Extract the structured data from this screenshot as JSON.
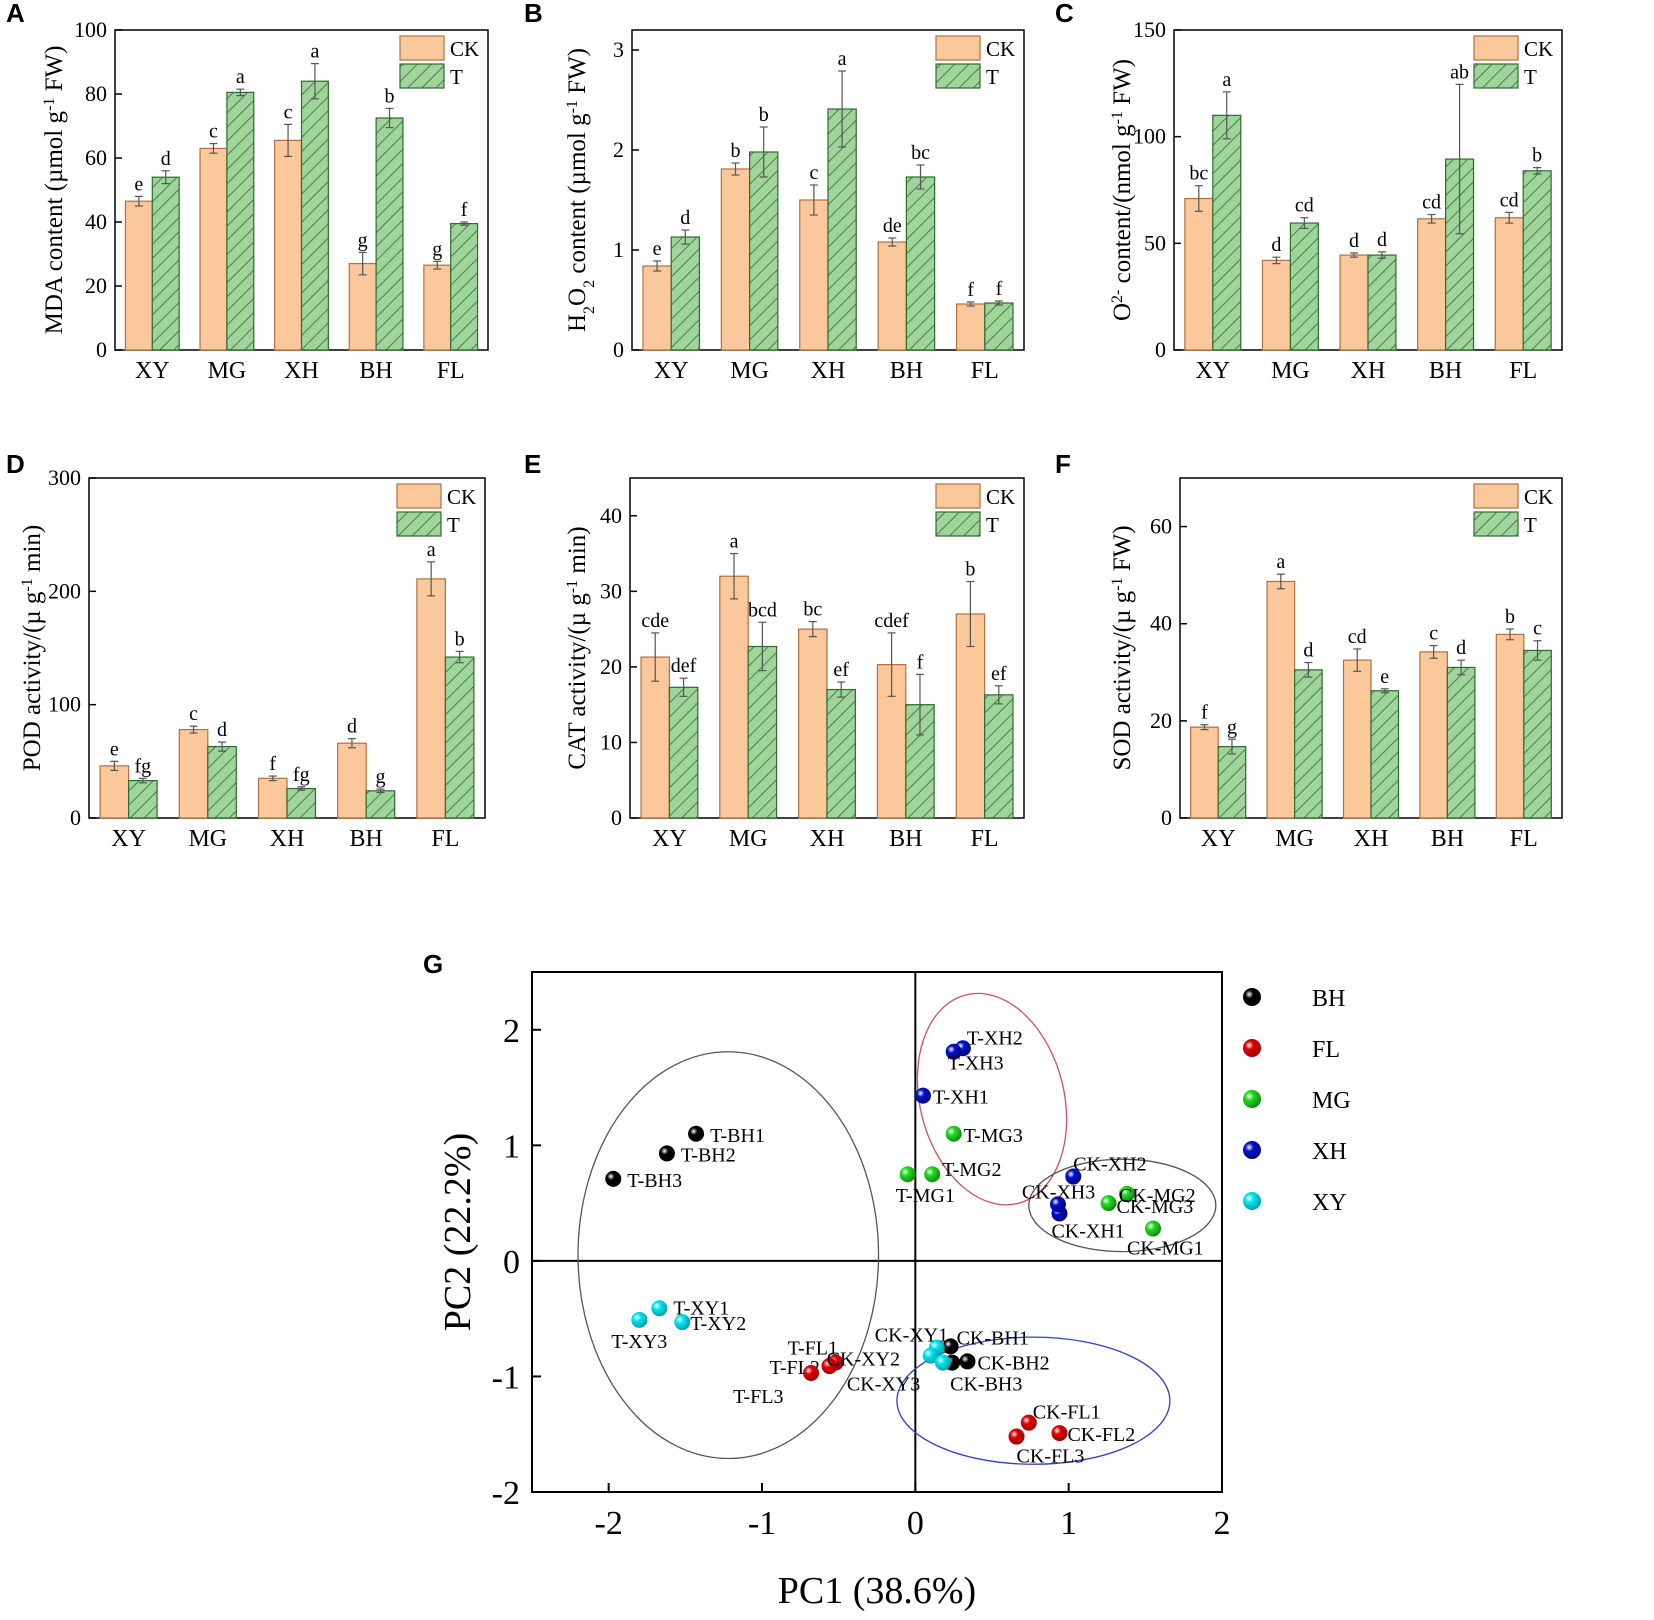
{
  "colors": {
    "ck_fill": "#fbc89c",
    "ck_stroke": "#b07040",
    "t_fill": "#9fd49a",
    "t_stroke": "#2e6b2e",
    "ellipse_black": "#555555",
    "ellipse_red": "#d05060",
    "ellipse_blue": "#3040c0"
  },
  "chart_data": [
    {
      "panel": "A",
      "type": "bar",
      "ylabel": "MDA content (µmol g-1 FW)",
      "ylabel_parts": {
        "main": "MDA content (µmol g",
        "sup": "-1",
        "rest": " FW)"
      },
      "categories": [
        "XY",
        "MG",
        "XH",
        "BH",
        "FL"
      ],
      "ylim": [
        0,
        100
      ],
      "yticks": [
        0,
        20,
        40,
        60,
        80,
        100
      ],
      "legend": [
        "CK",
        "T"
      ],
      "series": [
        {
          "name": "CK",
          "values": [
            46.5,
            63,
            65.5,
            27,
            26.5
          ],
          "errors": [
            1.5,
            1.5,
            5,
            3.5,
            1.2
          ],
          "letters": [
            "e",
            "c",
            "c",
            "g",
            "g"
          ]
        },
        {
          "name": "T",
          "values": [
            54,
            80.5,
            84,
            72.5,
            39.5
          ],
          "errors": [
            2,
            1,
            5.5,
            3,
            0.5
          ],
          "letters": [
            "d",
            "a",
            "a",
            "b",
            "f"
          ]
        }
      ]
    },
    {
      "panel": "B",
      "type": "bar",
      "ylabel": "H2O2 content (µmol g-1 FW)",
      "ylabel_parts": {
        "main": "H",
        "sub1": "2",
        "mid": "O",
        "sub2": "2",
        "main2": " content (µmol g",
        "sup": "-1",
        "rest": " FW)"
      },
      "categories": [
        "XY",
        "MG",
        "XH",
        "BH",
        "FL"
      ],
      "ylim": [
        0,
        3.2
      ],
      "yticks": [
        0,
        1,
        2,
        3
      ],
      "legend": [
        "CK",
        "T"
      ],
      "series": [
        {
          "name": "CK",
          "values": [
            0.84,
            1.81,
            1.5,
            1.08,
            0.46
          ],
          "errors": [
            0.05,
            0.06,
            0.15,
            0.04,
            0.02
          ],
          "letters": [
            "e",
            "b",
            "c",
            "de",
            "f"
          ]
        },
        {
          "name": "T",
          "values": [
            1.13,
            1.98,
            2.41,
            1.73,
            0.47
          ],
          "errors": [
            0.07,
            0.25,
            0.38,
            0.12,
            0.02
          ],
          "letters": [
            "d",
            "b",
            "a",
            "bc",
            "f"
          ]
        }
      ]
    },
    {
      "panel": "C",
      "type": "bar",
      "ylabel": "O2- content/(nmol g-1 FW)",
      "ylabel_parts": {
        "main": "O",
        "sup1": "2-",
        "main2": " content/(nmol g",
        "sup": "-1",
        "rest": " FW)"
      },
      "categories": [
        "XY",
        "MG",
        "XH",
        "BH",
        "FL"
      ],
      "ylim": [
        0,
        150
      ],
      "yticks": [
        0,
        50,
        100,
        150
      ],
      "legend": [
        "CK",
        "T"
      ],
      "series": [
        {
          "name": "CK",
          "values": [
            71,
            42,
            44.5,
            61.5,
            62
          ],
          "errors": [
            6,
            1.5,
            1,
            2,
            2.5
          ],
          "letters": [
            "bc",
            "d",
            "d",
            "cd",
            "cd"
          ]
        },
        {
          "name": "T",
          "values": [
            110,
            59.5,
            44.5,
            89.5,
            84
          ],
          "errors": [
            11,
            2.5,
            1.5,
            35,
            1.5
          ],
          "letters": [
            "a",
            "cd",
            "d",
            "ab",
            "b"
          ]
        }
      ]
    },
    {
      "panel": "D",
      "type": "bar",
      "ylabel": "POD activity/(µ g-1 min)",
      "ylabel_parts": {
        "main": "POD activity/(µ g",
        "sup": "-1",
        "rest": " min)"
      },
      "categories": [
        "XY",
        "MG",
        "XH",
        "BH",
        "FL"
      ],
      "ylim": [
        0,
        300
      ],
      "yticks": [
        0,
        100,
        200,
        300
      ],
      "legend": [
        "CK",
        "T"
      ],
      "series": [
        {
          "name": "CK",
          "values": [
            46,
            78,
            35,
            66,
            211
          ],
          "errors": [
            4,
            3,
            2,
            4,
            15
          ],
          "letters": [
            "e",
            "c",
            "f",
            "d",
            "a"
          ]
        },
        {
          "name": "T",
          "values": [
            33,
            63,
            26,
            24,
            142
          ],
          "errors": [
            2,
            4,
            1.5,
            1.5,
            5
          ],
          "letters": [
            "fg",
            "d",
            "fg",
            "g",
            "b"
          ]
        }
      ]
    },
    {
      "panel": "E",
      "type": "bar",
      "ylabel": "CAT activity/(µ g-1 min)",
      "ylabel_parts": {
        "main": "CAT activity/(µ g",
        "sup": "-1",
        "rest": " min)"
      },
      "categories": [
        "XY",
        "MG",
        "XH",
        "BH",
        "FL"
      ],
      "ylim": [
        0,
        45
      ],
      "yticks": [
        0,
        10,
        20,
        30,
        40
      ],
      "legend": [
        "CK",
        "T"
      ],
      "series": [
        {
          "name": "CK",
          "values": [
            21.3,
            32,
            25,
            20.3,
            27
          ],
          "errors": [
            3.2,
            3,
            1,
            4.2,
            4.3
          ],
          "letters": [
            "cde",
            "a",
            "bc",
            "cdef",
            "b"
          ]
        },
        {
          "name": "T",
          "values": [
            17.3,
            22.7,
            17,
            15,
            16.3
          ],
          "errors": [
            1.2,
            3.2,
            1,
            4,
            1.2
          ],
          "letters": [
            "def",
            "bcd",
            "ef",
            "f",
            "ef"
          ]
        }
      ]
    },
    {
      "panel": "F",
      "type": "bar",
      "ylabel": "SOD activity/(µ g-1 FW)",
      "ylabel_parts": {
        "main": "SOD activity/(µ g",
        "sup": "-1",
        "rest": " FW)"
      },
      "categories": [
        "XY",
        "MG",
        "XH",
        "BH",
        "FL"
      ],
      "ylim": [
        0,
        70
      ],
      "yticks": [
        0,
        20,
        40,
        60
      ],
      "legend": [
        "CK",
        "T"
      ],
      "series": [
        {
          "name": "CK",
          "values": [
            18.7,
            48.7,
            32.5,
            34.2,
            37.8
          ],
          "errors": [
            0.5,
            1.5,
            2.3,
            1.3,
            1.1
          ],
          "letters": [
            "f",
            "a",
            "cd",
            "c",
            "b"
          ]
        },
        {
          "name": "T",
          "values": [
            14.7,
            30.5,
            26.2,
            31,
            34.5
          ],
          "errors": [
            1.5,
            1.5,
            0.4,
            1.5,
            2
          ],
          "letters": [
            "g",
            "d",
            "e",
            "d",
            "c"
          ]
        }
      ]
    },
    {
      "panel": "G",
      "type": "scatter",
      "xlabel": "PC1 (38.6%)",
      "ylabel": "PC2 (22.2%)",
      "xlim": [
        -2.5,
        2
      ],
      "ylim": [
        -2,
        2.5
      ],
      "xticks": [
        -2,
        -1,
        0,
        1,
        2
      ],
      "yticks": [
        -2,
        -1,
        0,
        1,
        2
      ],
      "groups": [
        {
          "name": "BH",
          "color": "#000000"
        },
        {
          "name": "FL",
          "color": "#e00000"
        },
        {
          "name": "MG",
          "color": "#22dd22"
        },
        {
          "name": "XH",
          "color": "#0010d0"
        },
        {
          "name": "XY",
          "color": "#00e8f0"
        }
      ],
      "points": [
        {
          "label": "T-BH1",
          "group": "BH",
          "x": -1.43,
          "y": 1.1
        },
        {
          "label": "T-BH2",
          "group": "BH",
          "x": -1.62,
          "y": 0.93
        },
        {
          "label": "T-BH3",
          "group": "BH",
          "x": -1.97,
          "y": 0.71
        },
        {
          "label": "CK-BH1",
          "group": "BH",
          "x": 0.23,
          "y": -0.74
        },
        {
          "label": "CK-BH2",
          "group": "BH",
          "x": 0.34,
          "y": -0.87
        },
        {
          "label": "CK-BH3",
          "group": "BH",
          "x": 0.24,
          "y": -0.88
        },
        {
          "label": "T-FL1",
          "group": "FL",
          "x": -0.52,
          "y": -0.88
        },
        {
          "label": "T-FL2",
          "group": "FL",
          "x": -0.56,
          "y": -0.91
        },
        {
          "label": "T-FL3",
          "group": "FL",
          "x": -0.68,
          "y": -0.97
        },
        {
          "label": "CK-FL1",
          "group": "FL",
          "x": 0.74,
          "y": -1.4
        },
        {
          "label": "CK-FL2",
          "group": "FL",
          "x": 0.94,
          "y": -1.49
        },
        {
          "label": "CK-FL3",
          "group": "FL",
          "x": 0.66,
          "y": -1.52
        },
        {
          "label": "T-MG1",
          "group": "MG",
          "x": -0.05,
          "y": 0.75
        },
        {
          "label": "T-MG2",
          "group": "MG",
          "x": 0.11,
          "y": 0.75
        },
        {
          "label": "T-MG3",
          "group": "MG",
          "x": 0.25,
          "y": 1.1
        },
        {
          "label": "CK-MG1",
          "group": "MG",
          "x": 1.55,
          "y": 0.28
        },
        {
          "label": "CK-MG2",
          "group": "MG",
          "x": 1.38,
          "y": 0.58
        },
        {
          "label": "CK-MG3",
          "group": "MG",
          "x": 1.26,
          "y": 0.5
        },
        {
          "label": "T-XH1",
          "group": "XH",
          "x": 0.05,
          "y": 1.43
        },
        {
          "label": "T-XH2",
          "group": "XH",
          "x": 0.31,
          "y": 1.84
        },
        {
          "label": "T-XH3",
          "group": "XH",
          "x": 0.25,
          "y": 1.81
        },
        {
          "label": "CK-XH1",
          "group": "XH",
          "x": 0.94,
          "y": 0.41
        },
        {
          "label": "CK-XH2",
          "group": "XH",
          "x": 1.03,
          "y": 0.73
        },
        {
          "label": "CK-XH3",
          "group": "XH",
          "x": 0.93,
          "y": 0.49
        },
        {
          "label": "T-XY1",
          "group": "XY",
          "x": -1.67,
          "y": -0.41
        },
        {
          "label": "T-XY2",
          "group": "XY",
          "x": -1.52,
          "y": -0.53
        },
        {
          "label": "T-XY3",
          "group": "XY",
          "x": -1.8,
          "y": -0.51
        },
        {
          "label": "CK-XY1",
          "group": "XY",
          "x": 0.14,
          "y": -0.75
        },
        {
          "label": "CK-XY2",
          "group": "XY",
          "x": 0.1,
          "y": -0.82
        },
        {
          "label": "CK-XY3",
          "group": "XY",
          "x": 0.18,
          "y": -0.88
        }
      ],
      "ellipses": [
        {
          "name": "ellipse-T-BH-XY",
          "cx": -1.22,
          "cy": 0.05,
          "rx": 0.98,
          "ry": 1.76,
          "rot": 0,
          "color": "ellipse_black"
        },
        {
          "name": "ellipse-T-XH-MG",
          "cx": 0.5,
          "cy": 1.4,
          "rx": 0.47,
          "ry": 0.93,
          "rot": -14,
          "color": "ellipse_red"
        },
        {
          "name": "ellipse-CK-XH-MG",
          "cx": 1.35,
          "cy": 0.48,
          "rx": 0.61,
          "ry": 0.4,
          "rot": 0,
          "color": "ellipse_black"
        },
        {
          "name": "ellipse-CK-BH-FL",
          "cx": 0.77,
          "cy": -1.21,
          "rx": 0.89,
          "ry": 0.55,
          "rot": 0,
          "color": "ellipse_blue"
        }
      ]
    }
  ]
}
